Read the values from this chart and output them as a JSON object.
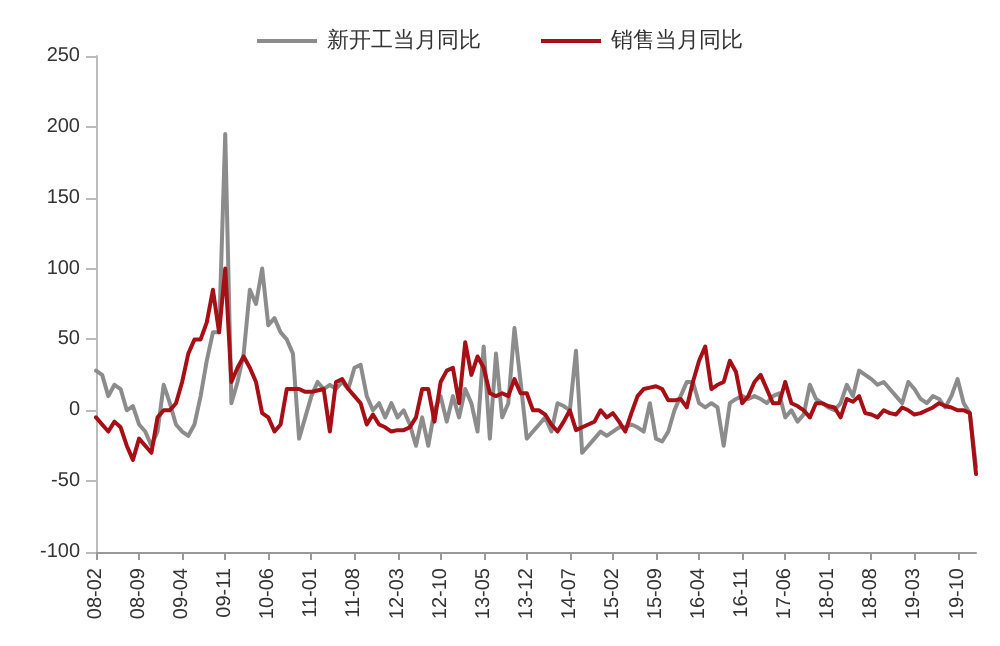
{
  "chart_data": {
    "type": "line",
    "categories": [
      "08-02",
      null,
      null,
      null,
      null,
      null,
      null,
      "08-09",
      null,
      null,
      null,
      null,
      null,
      null,
      "09-04",
      null,
      null,
      null,
      null,
      null,
      null,
      "09-11",
      null,
      null,
      null,
      null,
      null,
      null,
      "10-06",
      null,
      null,
      null,
      null,
      null,
      null,
      "11-01",
      null,
      null,
      null,
      null,
      null,
      null,
      "11-08",
      null,
      null,
      null,
      null,
      null,
      null,
      "12-03",
      null,
      null,
      null,
      null,
      null,
      null,
      "12-10",
      null,
      null,
      null,
      null,
      null,
      null,
      "13-05",
      null,
      null,
      null,
      null,
      null,
      null,
      "13-12",
      null,
      null,
      null,
      null,
      null,
      null,
      "14-07",
      null,
      null,
      null,
      null,
      null,
      null,
      "15-02",
      null,
      null,
      null,
      null,
      null,
      null,
      "15-09",
      null,
      null,
      null,
      null,
      null,
      null,
      "16-04",
      null,
      null,
      null,
      null,
      null,
      null,
      "16-11",
      null,
      null,
      null,
      null,
      null,
      null,
      "17-06",
      null,
      null,
      null,
      null,
      null,
      null,
      "18-01",
      null,
      null,
      null,
      null,
      null,
      null,
      "18-08",
      null,
      null,
      null,
      null,
      null,
      null,
      "19-03",
      null,
      null,
      null,
      null,
      null,
      null,
      "19-10",
      null,
      null,
      null
    ],
    "series": [
      {
        "name": "新开工当月同比",
        "color": "#8c8c8c",
        "values": [
          28,
          25,
          10,
          18,
          15,
          0,
          3,
          -10,
          -15,
          -25,
          -15,
          18,
          5,
          -10,
          -15,
          -18,
          -10,
          10,
          35,
          55,
          55,
          195,
          5,
          20,
          40,
          85,
          75,
          100,
          60,
          65,
          55,
          50,
          40,
          -20,
          -5,
          10,
          20,
          15,
          18,
          15,
          20,
          15,
          30,
          32,
          10,
          0,
          5,
          -5,
          5,
          -5,
          0,
          -10,
          -25,
          -5,
          -25,
          0,
          10,
          -8,
          10,
          -5,
          15,
          5,
          -15,
          45,
          -20,
          40,
          -5,
          5,
          58,
          20,
          -20,
          -15,
          -10,
          -5,
          -15,
          5,
          3,
          0,
          42,
          -30,
          -25,
          -20,
          -15,
          -18,
          -15,
          -12,
          -12,
          -10,
          -12,
          -15,
          5,
          -20,
          -22,
          -15,
          0,
          10,
          20,
          20,
          5,
          2,
          5,
          2,
          -25,
          5,
          8,
          10,
          8,
          10,
          8,
          5,
          10,
          12,
          -5,
          0,
          -8,
          -3,
          18,
          8,
          5,
          2,
          0,
          5,
          18,
          10,
          28,
          25,
          22,
          18,
          20,
          15,
          10,
          5,
          20,
          15,
          8,
          5,
          10,
          8,
          2,
          10,
          22,
          5,
          -2,
          -40
        ]
      },
      {
        "name": "销售当月同比",
        "color": "#a50f15",
        "values": [
          -5,
          -10,
          -15,
          -8,
          -12,
          -25,
          -35,
          -20,
          -25,
          -30,
          -5,
          0,
          0,
          5,
          20,
          40,
          50,
          50,
          62,
          85,
          55,
          100,
          20,
          30,
          38,
          30,
          20,
          -2,
          -5,
          -15,
          -10,
          15,
          15,
          15,
          13,
          13,
          14,
          15,
          -15,
          20,
          22,
          15,
          10,
          5,
          -10,
          -3,
          -10,
          -12,
          -15,
          -14,
          -14,
          -12,
          -5,
          15,
          15,
          -8,
          20,
          28,
          30,
          5,
          48,
          25,
          38,
          30,
          12,
          10,
          12,
          10,
          22,
          12,
          12,
          0,
          0,
          -3,
          -10,
          -15,
          -8,
          0,
          -14,
          -12,
          -10,
          -8,
          0,
          -5,
          -2,
          -8,
          -15,
          -2,
          10,
          15,
          16,
          17,
          15,
          7,
          7,
          8,
          2,
          20,
          35,
          45,
          15,
          18,
          20,
          35,
          27,
          5,
          10,
          20,
          25,
          15,
          5,
          5,
          20,
          5,
          3,
          0,
          -5,
          5,
          5,
          3,
          2,
          -5,
          8,
          6,
          10,
          -2,
          -3,
          -5,
          0,
          -2,
          -3,
          2,
          0,
          -3,
          -2,
          0,
          2,
          5,
          3,
          2,
          0,
          0,
          -2,
          -45
        ]
      }
    ],
    "ylim": [
      -100,
      250
    ],
    "yticks": [
      -100,
      -50,
      0,
      50,
      100,
      150,
      200,
      250
    ],
    "grid": false,
    "legend": "top",
    "marker": "none",
    "line_style": "solid"
  }
}
